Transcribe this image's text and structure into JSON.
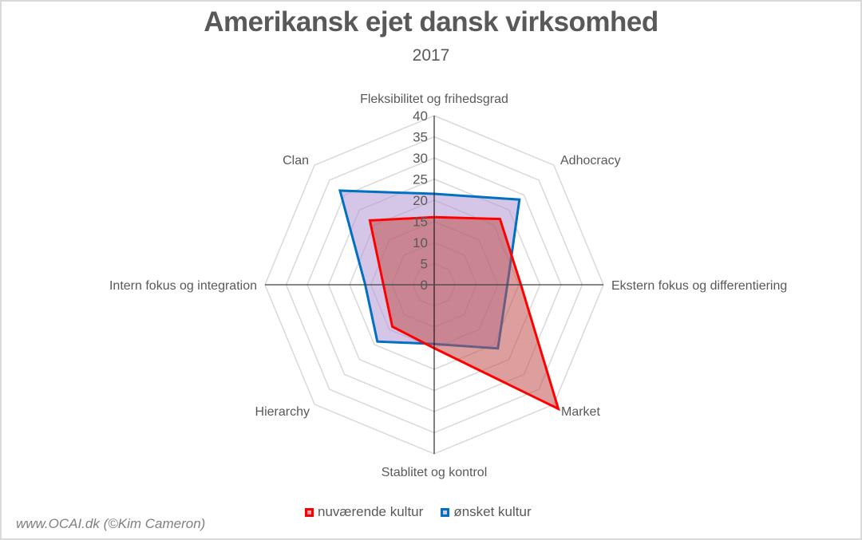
{
  "chart_data": {
    "type": "radar",
    "title": "Amerikansk ejet dansk virksomhed",
    "subtitle": "2017",
    "categories": [
      "Fleksibilitet og frihedsgrad",
      "Adhocracy",
      "Ekstern fokus og differentiering",
      "Market",
      "Stablitet og kontrol",
      "Hierarchy",
      "Intern fokus og integration",
      "Clan"
    ],
    "series": [
      {
        "name": "nuværende kultur",
        "color": "#ff0000",
        "fill": "rgba(192,80,77,0.55)",
        "values": [
          16,
          22,
          20.5,
          41.5,
          15,
          14,
          12,
          21.5
        ]
      },
      {
        "name": "ønsket kultur",
        "color": "#0070c0",
        "fill": "rgba(178,150,210,0.55)",
        "values": [
          21.5,
          28.5,
          17.3,
          21.3,
          14,
          19,
          16.3,
          31.5
        ]
      }
    ],
    "rlim": [
      0,
      40
    ],
    "tick_step": 5,
    "tick_labels": [
      "0",
      "5",
      "10",
      "15",
      "20",
      "25",
      "30",
      "35",
      "40"
    ],
    "grid": true,
    "legend_position": "bottom"
  },
  "legend": [
    {
      "label": "nuværende kultur"
    },
    {
      "label": "ønsket kultur"
    }
  ],
  "credit": "www.OCAI.dk (©Kim Cameron)"
}
